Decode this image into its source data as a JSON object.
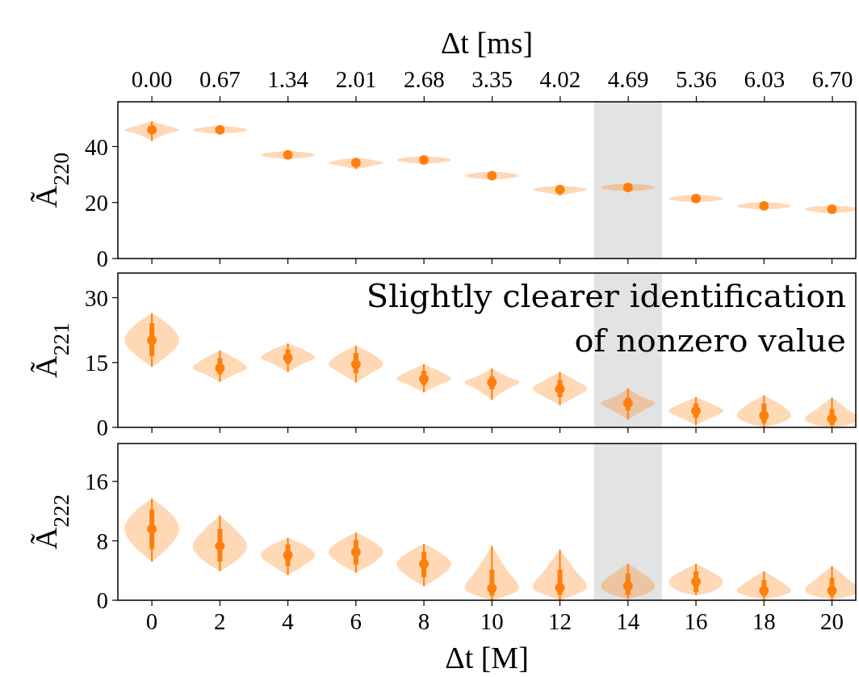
{
  "chart_data": [
    {
      "type": "box",
      "x2label": "Δt [ms]",
      "ylabel": "Ã$_{220}$",
      "categories": [
        "0",
        "2",
        "4",
        "6",
        "8",
        "10",
        "12",
        "14",
        "16",
        "18",
        "20"
      ],
      "x2lim": [
        -0.335,
        6.93
      ],
      "x2ticks": [
        {
          "value": 0,
          "label": "0.00"
        },
        0.67,
        1.34,
        2.01,
        2.68,
        3.35,
        4.02,
        4.69,
        5.36,
        6.03,
        {
          "value": 6.7,
          "label": "6.70"
        }
      ],
      "ylim": [
        0,
        56
      ],
      "yticks": [
        0,
        20,
        40
      ],
      "tick_labels": "y",
      "series": [
        {
          "color": "#ff7f0e",
          "boxes": [
            {
              "low": 42,
              "q1": 44.5,
              "median": 46,
              "q3": 47.5,
              "high": 49
            },
            {
              "low": 44.5,
              "q1": 45,
              "median": 46,
              "q3": 47,
              "high": 47.5
            },
            {
              "low": 35.5,
              "q1": 36,
              "median": 37,
              "q3": 38,
              "high": 38.5
            },
            {
              "low": 32,
              "q1": 33,
              "median": 34.2,
              "q3": 35.3,
              "high": 36
            },
            {
              "low": 33.8,
              "q1": 34.2,
              "median": 35.2,
              "q3": 36.2,
              "high": 36.6
            },
            {
              "low": 28.2,
              "q1": 28.6,
              "median": 29.6,
              "q3": 30.6,
              "high": 31
            },
            {
              "low": 22.5,
              "q1": 23.6,
              "median": 24.6,
              "q3": 25.6,
              "high": 26
            },
            {
              "low": 24,
              "q1": 24.4,
              "median": 25.4,
              "q3": 26.4,
              "high": 26.8
            },
            {
              "low": 20,
              "q1": 20.4,
              "median": 21.4,
              "q3": 22.4,
              "high": 22.8
            },
            {
              "low": 17.4,
              "q1": 17.8,
              "median": 18.8,
              "q3": 19.8,
              "high": 20.2
            },
            {
              "low": 16.2,
              "q1": 16.6,
              "median": 17.6,
              "q3": 18.6,
              "high": 19
            }
          ]
        }
      ],
      "bands": [
        {
          "axis": "x",
          "from": "14",
          "to": "14",
          "color": "#e3e3e3"
        }
      ]
    },
    {
      "type": "box",
      "ylabel": "Ã$_{221}$",
      "categories": [
        "0",
        "2",
        "4",
        "6",
        "8",
        "10",
        "12",
        "14",
        "16",
        "18",
        "20"
      ],
      "ylim": [
        0,
        35.7
      ],
      "yticks": [
        0,
        15,
        30
      ],
      "tick_labels": "y",
      "annotations": [
        "Slightly clearer identification\nof nonzero value"
      ],
      "series": [
        {
          "color": "#ff7f0e",
          "boxes": [
            {
              "low": 14,
              "q1": 16.5,
              "median": 20.1,
              "q3": 24.1,
              "high": 26.4
            },
            {
              "low": 10.5,
              "q1": 12.3,
              "median": 13.7,
              "q3": 16,
              "high": 17.8
            },
            {
              "low": 12.8,
              "q1": 14.7,
              "median": 16.1,
              "q3": 18,
              "high": 19.4
            },
            {
              "low": 10.4,
              "q1": 12.5,
              "median": 14.6,
              "q3": 17.2,
              "high": 18.9
            },
            {
              "low": 8.1,
              "q1": 9.8,
              "median": 11.2,
              "q3": 13.1,
              "high": 14.6
            },
            {
              "low": 6.4,
              "q1": 8.8,
              "median": 10.4,
              "q3": 11.8,
              "high": 13.6
            },
            {
              "low": 5.1,
              "q1": 7,
              "median": 8.9,
              "q3": 11,
              "high": 12.8
            },
            {
              "low": 1.8,
              "q1": 3.9,
              "median": 5.6,
              "q3": 6.9,
              "high": 9
            },
            {
              "low": 0.5,
              "q1": 2.2,
              "median": 3.8,
              "q3": 5.5,
              "high": 7
            },
            {
              "low": 0,
              "q1": 0.9,
              "median": 2.7,
              "q3": 5.5,
              "high": 7.4
            },
            {
              "low": 0,
              "q1": 0.5,
              "median": 2,
              "q3": 4.3,
              "high": 6.9
            }
          ]
        }
      ],
      "bands": [
        {
          "axis": "x",
          "from": "14",
          "to": "14",
          "color": "#e3e3e3"
        }
      ]
    },
    {
      "type": "box",
      "xlabel": "Δt [M]",
      "ylabel": "Ã$_{222}$",
      "categories": [
        "0",
        "2",
        "4",
        "6",
        "8",
        "10",
        "12",
        "14",
        "16",
        "18",
        "20"
      ],
      "ylim": [
        0,
        21.1
      ],
      "yticks": [
        0,
        8,
        16
      ],
      "series": [
        {
          "color": "#ff7f0e",
          "boxes": [
            {
              "low": 5.2,
              "q1": 6.9,
              "median": 9.6,
              "q3": 12.2,
              "high": 13.7
            },
            {
              "low": 3.9,
              "q1": 5.2,
              "median": 7.3,
              "q3": 9.6,
              "high": 11.4
            },
            {
              "low": 3.4,
              "q1": 4.6,
              "median": 6.1,
              "q3": 7.5,
              "high": 8.4
            },
            {
              "low": 3.7,
              "q1": 4.8,
              "median": 6.5,
              "q3": 8.1,
              "high": 9.1
            },
            {
              "low": 1.9,
              "q1": 3.1,
              "median": 4.9,
              "q3": 6.5,
              "high": 7.6
            },
            {
              "low": 0,
              "q1": 0.6,
              "median": 1.6,
              "q3": 4.1,
              "high": 7.3
            },
            {
              "low": 0,
              "q1": 0.7,
              "median": 1.7,
              "q3": 4.1,
              "high": 6.8
            },
            {
              "low": 0.2,
              "q1": 0.7,
              "median": 1.9,
              "q3": 3.6,
              "high": 4.9
            },
            {
              "low": 0.7,
              "q1": 1.1,
              "median": 2.5,
              "q3": 3.9,
              "high": 4.9
            },
            {
              "low": 0.1,
              "q1": 0.5,
              "median": 1.3,
              "q3": 2.7,
              "high": 3.9
            },
            {
              "low": 0.1,
              "q1": 0.5,
              "median": 1.3,
              "q3": 3,
              "high": 4.6
            }
          ]
        }
      ],
      "bands": [
        {
          "axis": "x",
          "from": "14",
          "to": "14",
          "color": "#e3e3e3"
        }
      ]
    }
  ]
}
